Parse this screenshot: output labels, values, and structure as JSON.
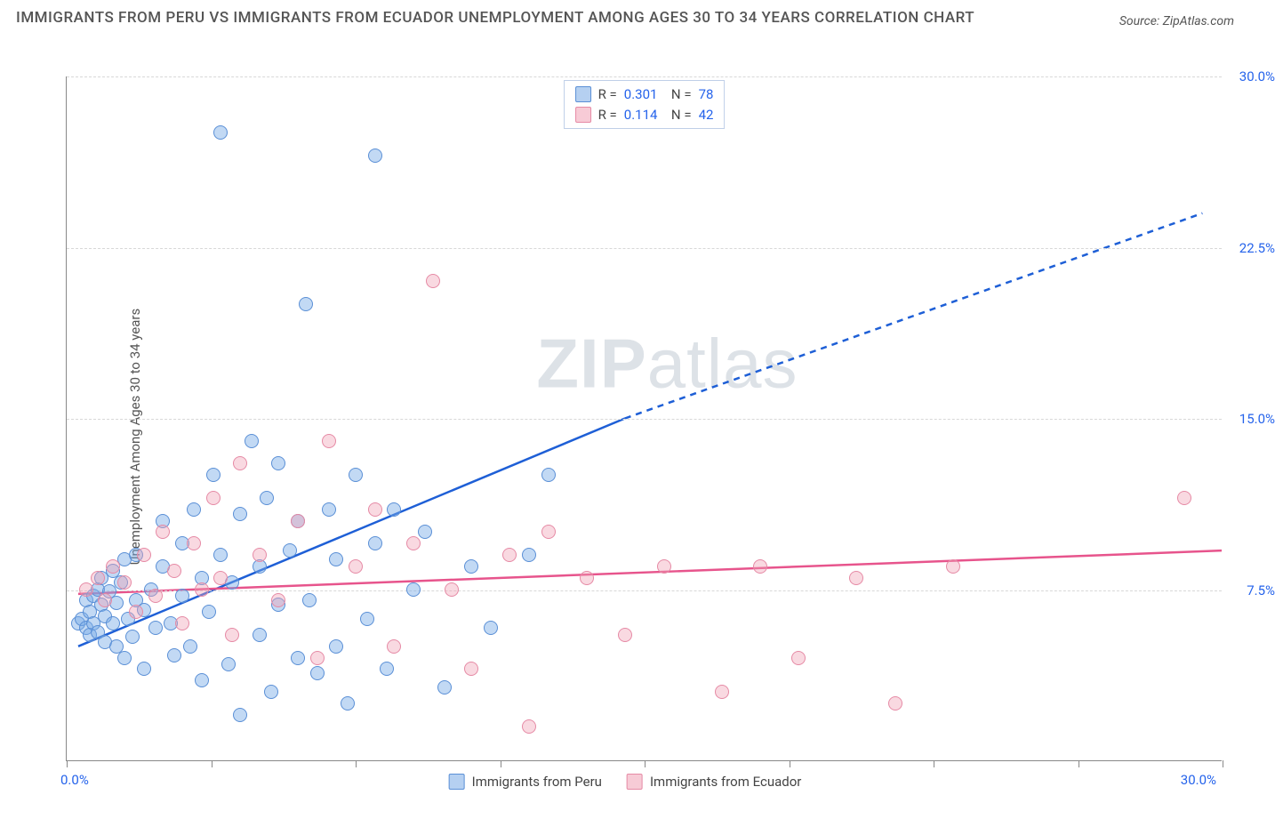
{
  "title": "IMMIGRANTS FROM PERU VS IMMIGRANTS FROM ECUADOR UNEMPLOYMENT AMONG AGES 30 TO 34 YEARS CORRELATION CHART",
  "source": "Source: ZipAtlas.com",
  "ylabel": "Unemployment Among Ages 30 to 34 years",
  "watermark_bold": "ZIP",
  "watermark_light": "atlas",
  "chart": {
    "type": "scatter",
    "xlim": [
      0,
      30
    ],
    "ylim": [
      0,
      30
    ],
    "y_ticks": [
      7.5,
      15.0,
      22.5,
      30.0
    ],
    "y_tick_labels": [
      "7.5%",
      "15.0%",
      "22.5%",
      "30.0%"
    ],
    "x_tick_positions": [
      0,
      3.75,
      7.5,
      11.25,
      15,
      18.75,
      22.5,
      26.25,
      30
    ],
    "x_min_label": "0.0%",
    "x_max_label": "30.0%",
    "grid_color": "#d8d8d8",
    "axis_color": "#888888",
    "background_color": "#ffffff",
    "marker_radius": 8,
    "series": [
      {
        "name": "Immigrants from Peru",
        "color_fill": "rgba(120,170,230,0.45)",
        "color_stroke": "#5a8fd6",
        "trend_color": "#1e5fd6",
        "R": "0.301",
        "N": "78",
        "trend": {
          "x1": 0.3,
          "y1": 5.0,
          "x2_solid": 14.5,
          "y2_solid": 15.0,
          "x2": 29.5,
          "y2": 24.0
        },
        "points": [
          [
            0.3,
            6.0
          ],
          [
            0.4,
            6.2
          ],
          [
            0.5,
            5.8
          ],
          [
            0.5,
            7.0
          ],
          [
            0.6,
            6.5
          ],
          [
            0.6,
            5.5
          ],
          [
            0.7,
            7.2
          ],
          [
            0.7,
            6.0
          ],
          [
            0.8,
            7.5
          ],
          [
            0.8,
            5.6
          ],
          [
            0.9,
            6.8
          ],
          [
            0.9,
            8.0
          ],
          [
            1.0,
            6.3
          ],
          [
            1.0,
            5.2
          ],
          [
            1.1,
            7.4
          ],
          [
            1.2,
            6.0
          ],
          [
            1.2,
            8.3
          ],
          [
            1.3,
            5.0
          ],
          [
            1.3,
            6.9
          ],
          [
            1.4,
            7.8
          ],
          [
            1.5,
            4.5
          ],
          [
            1.5,
            8.8
          ],
          [
            1.6,
            6.2
          ],
          [
            1.7,
            5.4
          ],
          [
            1.8,
            7.0
          ],
          [
            1.8,
            9.0
          ],
          [
            2.0,
            6.6
          ],
          [
            2.0,
            4.0
          ],
          [
            2.2,
            7.5
          ],
          [
            2.3,
            5.8
          ],
          [
            2.5,
            8.5
          ],
          [
            2.5,
            10.5
          ],
          [
            2.7,
            6.0
          ],
          [
            2.8,
            4.6
          ],
          [
            3.0,
            9.5
          ],
          [
            3.0,
            7.2
          ],
          [
            3.2,
            5.0
          ],
          [
            3.3,
            11.0
          ],
          [
            3.5,
            8.0
          ],
          [
            3.5,
            3.5
          ],
          [
            3.7,
            6.5
          ],
          [
            3.8,
            12.5
          ],
          [
            4.0,
            27.5
          ],
          [
            4.0,
            9.0
          ],
          [
            4.2,
            4.2
          ],
          [
            4.3,
            7.8
          ],
          [
            4.5,
            10.8
          ],
          [
            4.5,
            2.0
          ],
          [
            4.8,
            14.0
          ],
          [
            5.0,
            5.5
          ],
          [
            5.0,
            8.5
          ],
          [
            5.2,
            11.5
          ],
          [
            5.3,
            3.0
          ],
          [
            5.5,
            6.8
          ],
          [
            5.5,
            13.0
          ],
          [
            5.8,
            9.2
          ],
          [
            6.0,
            4.5
          ],
          [
            6.0,
            10.5
          ],
          [
            6.2,
            20.0
          ],
          [
            6.3,
            7.0
          ],
          [
            6.5,
            3.8
          ],
          [
            6.8,
            11.0
          ],
          [
            7.0,
            5.0
          ],
          [
            7.0,
            8.8
          ],
          [
            7.3,
            2.5
          ],
          [
            7.5,
            12.5
          ],
          [
            7.8,
            6.2
          ],
          [
            8.0,
            9.5
          ],
          [
            8.0,
            26.5
          ],
          [
            8.3,
            4.0
          ],
          [
            8.5,
            11.0
          ],
          [
            9.0,
            7.5
          ],
          [
            9.3,
            10.0
          ],
          [
            9.8,
            3.2
          ],
          [
            10.5,
            8.5
          ],
          [
            11.0,
            5.8
          ],
          [
            12.0,
            9.0
          ],
          [
            12.5,
            12.5
          ]
        ]
      },
      {
        "name": "Immigrants from Ecuador",
        "color_fill": "rgba(240,160,180,0.40)",
        "color_stroke": "#e68aa5",
        "trend_color": "#e7548c",
        "R": "0.114",
        "N": "42",
        "trend": {
          "x1": 0.3,
          "y1": 7.3,
          "x2_solid": 30,
          "y2_solid": 9.2,
          "x2": 30,
          "y2": 9.2
        },
        "points": [
          [
            0.5,
            7.5
          ],
          [
            0.8,
            8.0
          ],
          [
            1.0,
            7.0
          ],
          [
            1.2,
            8.5
          ],
          [
            1.5,
            7.8
          ],
          [
            1.8,
            6.5
          ],
          [
            2.0,
            9.0
          ],
          [
            2.3,
            7.2
          ],
          [
            2.5,
            10.0
          ],
          [
            2.8,
            8.3
          ],
          [
            3.0,
            6.0
          ],
          [
            3.3,
            9.5
          ],
          [
            3.5,
            7.5
          ],
          [
            3.8,
            11.5
          ],
          [
            4.0,
            8.0
          ],
          [
            4.3,
            5.5
          ],
          [
            4.5,
            13.0
          ],
          [
            5.0,
            9.0
          ],
          [
            5.5,
            7.0
          ],
          [
            6.0,
            10.5
          ],
          [
            6.5,
            4.5
          ],
          [
            6.8,
            14.0
          ],
          [
            7.5,
            8.5
          ],
          [
            8.0,
            11.0
          ],
          [
            8.5,
            5.0
          ],
          [
            9.0,
            9.5
          ],
          [
            9.5,
            21.0
          ],
          [
            10.0,
            7.5
          ],
          [
            10.5,
            4.0
          ],
          [
            11.5,
            9.0
          ],
          [
            12.0,
            1.5
          ],
          [
            12.5,
            10.0
          ],
          [
            13.5,
            8.0
          ],
          [
            14.5,
            5.5
          ],
          [
            15.5,
            8.5
          ],
          [
            17.0,
            3.0
          ],
          [
            18.0,
            8.5
          ],
          [
            19.0,
            4.5
          ],
          [
            20.5,
            8.0
          ],
          [
            21.5,
            2.5
          ],
          [
            23.0,
            8.5
          ],
          [
            29.0,
            11.5
          ]
        ]
      }
    ]
  },
  "legend_bottom": [
    {
      "swatch": "blue",
      "label": "Immigrants from Peru"
    },
    {
      "swatch": "pink",
      "label": "Immigrants from Ecuador"
    }
  ]
}
